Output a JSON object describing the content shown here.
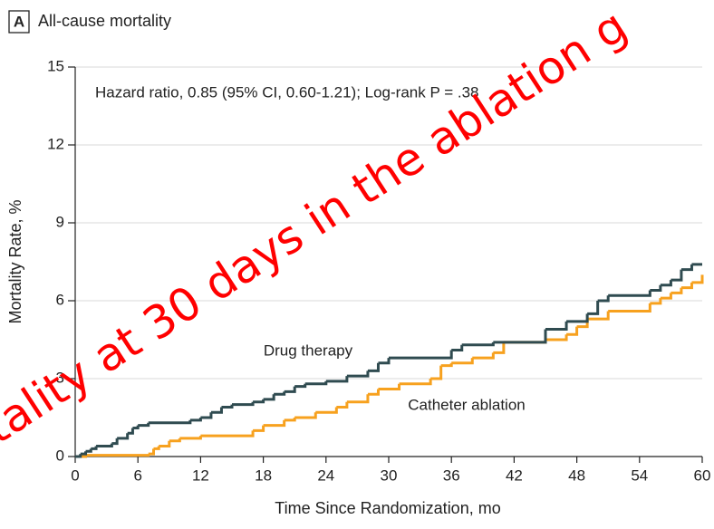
{
  "chart_data": {
    "type": "step",
    "panel": "A",
    "title": "All-cause mortality",
    "annotation": "Hazard ratio, 0.85 (95% CI, 0.60-1.21); Log-rank P = .38",
    "x_label": "Time Since Randomization, mo",
    "y_label": "Mortality Rate, %",
    "overlay_text": "tality at 30 days in the ablation g",
    "xlim": [
      0,
      60
    ],
    "xticks": [
      0,
      6,
      12,
      18,
      24,
      30,
      36,
      42,
      48,
      54,
      60
    ],
    "ylim": [
      0,
      15
    ],
    "yticks": [
      0,
      3,
      6,
      9,
      12,
      15
    ],
    "grid": true,
    "series": [
      {
        "name": "Drug therapy",
        "color": "#2f4b50",
        "x": [
          0,
          0.5,
          1,
          1.5,
          2,
          3.5,
          4,
          5,
          5.5,
          6,
          7,
          11,
          12,
          13,
          14,
          15,
          17,
          18,
          19,
          20,
          21,
          22,
          24,
          26,
          28,
          29,
          30,
          36,
          37,
          40,
          45,
          47,
          49,
          50,
          51,
          55,
          56,
          57,
          58,
          59,
          60
        ],
        "values": [
          0,
          0.1,
          0.2,
          0.3,
          0.4,
          0.5,
          0.7,
          0.9,
          1.1,
          1.2,
          1.3,
          1.4,
          1.5,
          1.7,
          1.9,
          2.0,
          2.1,
          2.2,
          2.4,
          2.5,
          2.7,
          2.8,
          2.9,
          3.1,
          3.3,
          3.6,
          3.8,
          4.1,
          4.3,
          4.4,
          4.9,
          5.2,
          5.5,
          6.0,
          6.2,
          6.4,
          6.6,
          6.8,
          7.2,
          7.4,
          7.4
        ]
      },
      {
        "name": "Catheter ablation",
        "color": "#f7a11e",
        "x": [
          0,
          1,
          7,
          7.5,
          8,
          9,
          10,
          12,
          17,
          18,
          20,
          21,
          23,
          25,
          26,
          28,
          29,
          31,
          34,
          35,
          36,
          38,
          40,
          41,
          45,
          47,
          48,
          49,
          51,
          55,
          56,
          57,
          58,
          59,
          60
        ],
        "values": [
          0,
          0.05,
          0.1,
          0.3,
          0.4,
          0.6,
          0.7,
          0.8,
          1.0,
          1.2,
          1.4,
          1.5,
          1.7,
          1.9,
          2.1,
          2.4,
          2.6,
          2.8,
          3.0,
          3.5,
          3.6,
          3.8,
          4.0,
          4.4,
          4.5,
          4.7,
          5.0,
          5.3,
          5.6,
          5.9,
          6.1,
          6.3,
          6.5,
          6.7,
          7.0
        ]
      }
    ]
  }
}
